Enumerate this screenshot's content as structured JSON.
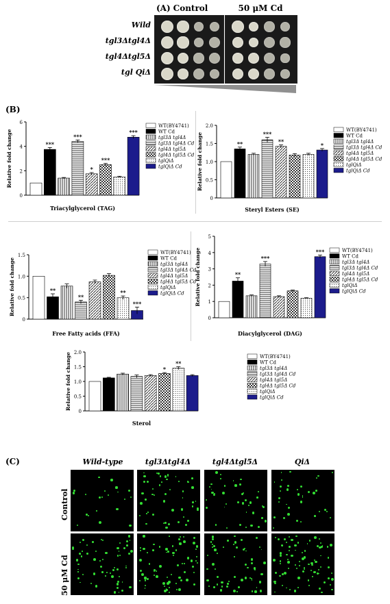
{
  "panels": {
    "a": "(A)",
    "b": "(B)",
    "c": "(C)"
  },
  "spot_assay": {
    "conditions": [
      "Control",
      "50 μM Cd"
    ],
    "strains": [
      "Wild",
      "tgl3Δtgl4Δ",
      "tgl4Δtgl5Δ",
      "tgl QiΔ"
    ]
  },
  "legend_labels": [
    "WT(BY4741)",
    "WT Cd",
    "tgl3Δ tgl4Δ",
    "tgl3Δ tgl4Δ Cd",
    "tgl4Δ tgl5Δ",
    "tgl4Δ tgl5Δ Cd",
    "tglQiΔ",
    "tglQiΔ Cd"
  ],
  "fills": [
    "white",
    "black",
    "vlines",
    "hlines",
    "diag",
    "checker",
    "dots",
    "navy"
  ],
  "colors": {
    "wt_cd": "#000000",
    "qi_cd": "#1c1c8c",
    "fluorescence": "#33dd33"
  },
  "chart_data": [
    {
      "type": "bar",
      "title": "Triacylglycerol (TAG)",
      "ylabel": "Relative fold change",
      "ylim": [
        0,
        6
      ],
      "yticks": [
        0,
        2,
        4,
        6
      ],
      "values": [
        1.0,
        3.75,
        1.4,
        4.4,
        1.75,
        2.5,
        1.5,
        4.75
      ],
      "errors": [
        0,
        0.15,
        0.05,
        0.12,
        0.1,
        0.1,
        0.05,
        0.12
      ],
      "significance": [
        "",
        "***",
        "",
        "***",
        "*",
        "***",
        "",
        "***"
      ]
    },
    {
      "type": "bar",
      "title": "Steryl Esters (SE)",
      "ylabel": "Relative fold change",
      "ylim": [
        0,
        2.0
      ],
      "yticks": [
        0,
        0.5,
        1.0,
        1.5,
        2.0
      ],
      "values": [
        1.0,
        1.35,
        1.2,
        1.6,
        1.42,
        1.18,
        1.2,
        1.32
      ],
      "errors": [
        0,
        0.05,
        0.03,
        0.07,
        0.04,
        0.04,
        0.03,
        0.04
      ],
      "significance": [
        "",
        "**",
        "",
        "***",
        "**",
        "",
        "",
        "*"
      ]
    },
    {
      "type": "bar",
      "title": "Free Fatty acids (FFA)",
      "ylabel": "Relative fold change",
      "ylim": [
        0,
        1.5
      ],
      "yticks": [
        0,
        0.5,
        1.0,
        1.5
      ],
      "values": [
        1.0,
        0.52,
        0.77,
        0.4,
        0.87,
        1.02,
        0.5,
        0.2
      ],
      "errors": [
        0,
        0.07,
        0.05,
        0.04,
        0.04,
        0.04,
        0.04,
        0.08
      ],
      "significance": [
        "",
        "**",
        "",
        "**",
        "",
        "",
        "**",
        "***"
      ]
    },
    {
      "type": "bar",
      "title": "Diacylglycerol (DAG)",
      "ylabel": "Relative fold change",
      "ylim": [
        0,
        5
      ],
      "yticks": [
        0,
        1,
        2,
        3,
        4,
        5
      ],
      "values": [
        1.0,
        2.25,
        1.35,
        3.3,
        1.3,
        1.65,
        1.2,
        3.75
      ],
      "errors": [
        0,
        0.2,
        0.05,
        0.15,
        0.05,
        0.05,
        0.03,
        0.1
      ],
      "significance": [
        "",
        "**",
        "",
        "***",
        "",
        "",
        "",
        "***"
      ]
    },
    {
      "type": "bar",
      "title": "Sterol",
      "ylabel": "Relative fold change",
      "ylim": [
        0,
        2.0
      ],
      "yticks": [
        0,
        0.5,
        1.0,
        1.5,
        2.0
      ],
      "values": [
        1.0,
        1.12,
        1.25,
        1.17,
        1.2,
        1.27,
        1.45,
        1.2
      ],
      "errors": [
        0,
        0.02,
        0.03,
        0.05,
        0.03,
        0.03,
        0.05,
        0.03
      ],
      "significance": [
        "",
        "",
        "",
        "",
        "",
        "*",
        "**",
        ""
      ]
    }
  ],
  "microscopy": {
    "columns": [
      "Wild-type",
      "tgl3Δtgl4Δ",
      "tgl4Δtgl5Δ",
      "QiΔ"
    ],
    "rows": [
      "Control",
      "50 μM Cd"
    ]
  }
}
